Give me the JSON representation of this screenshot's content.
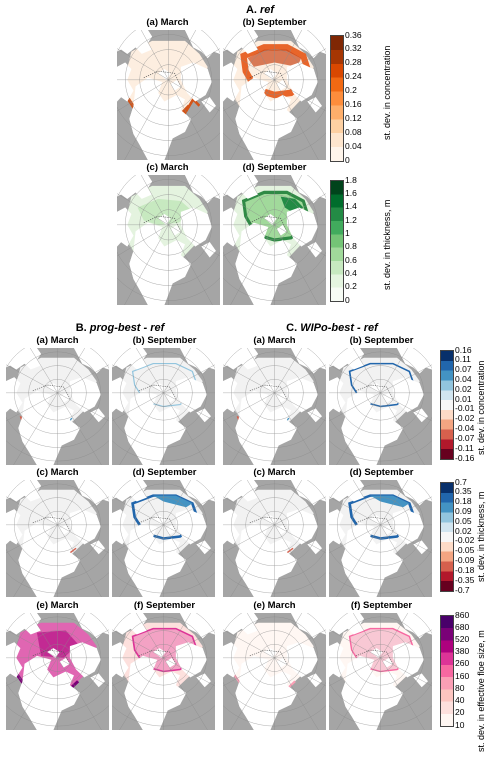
{
  "sections": {
    "A": {
      "prefix": "A.",
      "title": "ref"
    },
    "B": {
      "prefix": "B.",
      "title": "prog-best - ref"
    },
    "C": {
      "prefix": "C.",
      "title": "WIPo-best - ref"
    }
  },
  "panel_titles": {
    "a": "(a) March",
    "b": "(b) September",
    "c": "(c) March",
    "d": "(d) September",
    "e": "(e) March",
    "f": "(f) September"
  },
  "colorbars": {
    "ref_conc": {
      "label": "st. dev. in concentration",
      "ticks": [
        "0.36",
        "0.32",
        "0.28",
        "0.24",
        "0.2",
        "0.16",
        "0.12",
        "0.08",
        "0.04",
        "0"
      ],
      "colors": [
        "#7f2704",
        "#a63603",
        "#d94801",
        "#f16913",
        "#fd8d3c",
        "#fdae6b",
        "#fdd0a2",
        "#fee6ce",
        "#fff5eb"
      ]
    },
    "ref_thick": {
      "label": "st. dev. in thickness, m",
      "ticks": [
        "1.8",
        "1.6",
        "1.4",
        "1.2",
        "1",
        "0.8",
        "0.6",
        "0.4",
        "0.2",
        "0"
      ],
      "colors": [
        "#00441b",
        "#006d2c",
        "#238b45",
        "#41ab5d",
        "#74c476",
        "#a1d99b",
        "#c7e9c0",
        "#e5f5e0",
        "#f7fcf5"
      ]
    },
    "diff_conc": {
      "label": "st. dev. in concentration",
      "ticks": [
        "0.16",
        "0.11",
        "0.07",
        "0.04",
        "0.02",
        "0.01",
        "-0.01",
        "-0.02",
        "-0.04",
        "-0.07",
        "-0.11",
        "-0.16"
      ],
      "colors": [
        "#08306b",
        "#2166ac",
        "#4393c3",
        "#92c5de",
        "#d1e5f0",
        "#f7f7f7",
        "#fddbc7",
        "#f4a582",
        "#d6604d",
        "#b2182b",
        "#67001f"
      ]
    },
    "diff_thick": {
      "label": "st. dev. in thickness, m",
      "ticks": [
        "0.7",
        "0.35",
        "0.18",
        "0.09",
        "0.05",
        "0.02",
        "-0.02",
        "-0.05",
        "-0.09",
        "-0.18",
        "-0.35",
        "-0.7"
      ],
      "colors": [
        "#08306b",
        "#2166ac",
        "#4393c3",
        "#92c5de",
        "#d1e5f0",
        "#f7f7f7",
        "#fddbc7",
        "#f4a582",
        "#d6604d",
        "#b2182b",
        "#67001f"
      ]
    },
    "floe": {
      "label": "st. dev. in effective floe size, m",
      "ticks": [
        "860",
        "680",
        "520",
        "380",
        "260",
        "160",
        "80",
        "40",
        "20",
        "10"
      ],
      "colors": [
        "#49006a",
        "#7a0177",
        "#ae017e",
        "#dd3497",
        "#f768a1",
        "#fa9fb5",
        "#fcc5c0",
        "#fde0dd",
        "#fff7f3"
      ]
    }
  },
  "field_colors": {
    "ref_conc_ice": "#fdeee0",
    "ref_conc_sep_edge": "#e8652a",
    "ref_conc_mar_edge": "#d35418",
    "ref_thick_ice": "#e4f3df",
    "ref_thick_sep_edge": "#2f8a45",
    "diff_ice": "#f2f2f2",
    "floe_prog_mar": "#e066b2",
    "floe_prog_sep": "#f3a2c4",
    "floe_wipo_sep": "#f8c8d4",
    "land": "#ffffff",
    "ocean": "#a5a5a5"
  }
}
